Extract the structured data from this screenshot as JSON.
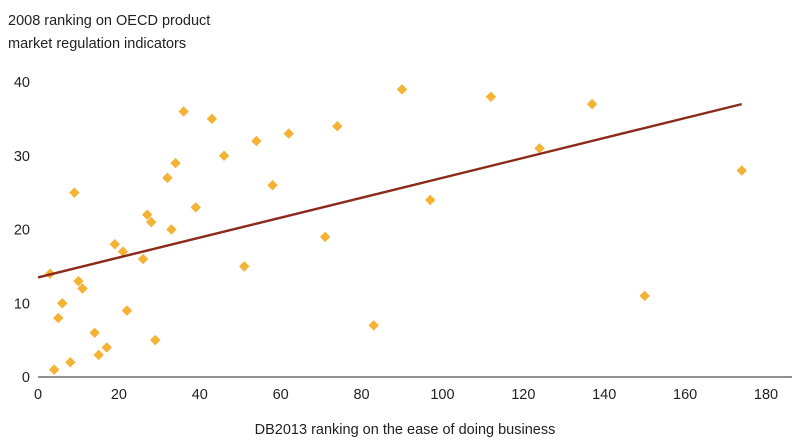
{
  "chart_data": {
    "type": "scatter",
    "title": "",
    "ylabel_lines": [
      "2008 ranking on OECD product",
      "market regulation indicators"
    ],
    "xlabel": "DB2013 ranking on the ease of doing business",
    "xlim": [
      0,
      180
    ],
    "ylim": [
      0,
      40
    ],
    "x_ticks": [
      0,
      20,
      40,
      60,
      80,
      100,
      120,
      140,
      160,
      180
    ],
    "y_ticks": [
      0,
      10,
      20,
      30,
      40
    ],
    "grid": false,
    "legend": "none",
    "marker_color": "#f5b335",
    "trendline_color": "#8b2a1a",
    "axis_color": "#231f20",
    "points": [
      {
        "x": 3,
        "y": 14
      },
      {
        "x": 4,
        "y": 1
      },
      {
        "x": 5,
        "y": 8
      },
      {
        "x": 6,
        "y": 10
      },
      {
        "x": 8,
        "y": 2
      },
      {
        "x": 9,
        "y": 25
      },
      {
        "x": 10,
        "y": 13
      },
      {
        "x": 11,
        "y": 12
      },
      {
        "x": 14,
        "y": 6
      },
      {
        "x": 15,
        "y": 3
      },
      {
        "x": 17,
        "y": 4
      },
      {
        "x": 19,
        "y": 18
      },
      {
        "x": 21,
        "y": 17
      },
      {
        "x": 22,
        "y": 9
      },
      {
        "x": 26,
        "y": 16
      },
      {
        "x": 27,
        "y": 22
      },
      {
        "x": 28,
        "y": 21
      },
      {
        "x": 29,
        "y": 5
      },
      {
        "x": 32,
        "y": 27
      },
      {
        "x": 33,
        "y": 20
      },
      {
        "x": 34,
        "y": 29
      },
      {
        "x": 36,
        "y": 36
      },
      {
        "x": 39,
        "y": 23
      },
      {
        "x": 43,
        "y": 35
      },
      {
        "x": 46,
        "y": 30
      },
      {
        "x": 51,
        "y": 15
      },
      {
        "x": 54,
        "y": 32
      },
      {
        "x": 58,
        "y": 26
      },
      {
        "x": 62,
        "y": 33
      },
      {
        "x": 71,
        "y": 19
      },
      {
        "x": 74,
        "y": 34
      },
      {
        "x": 83,
        "y": 7
      },
      {
        "x": 90,
        "y": 39
      },
      {
        "x": 97,
        "y": 24
      },
      {
        "x": 112,
        "y": 38
      },
      {
        "x": 124,
        "y": 31
      },
      {
        "x": 137,
        "y": 37
      },
      {
        "x": 150,
        "y": 11
      },
      {
        "x": 174,
        "y": 28
      }
    ],
    "trendline": {
      "x": [
        0,
        174
      ],
      "y": [
        13.5,
        37
      ]
    }
  }
}
